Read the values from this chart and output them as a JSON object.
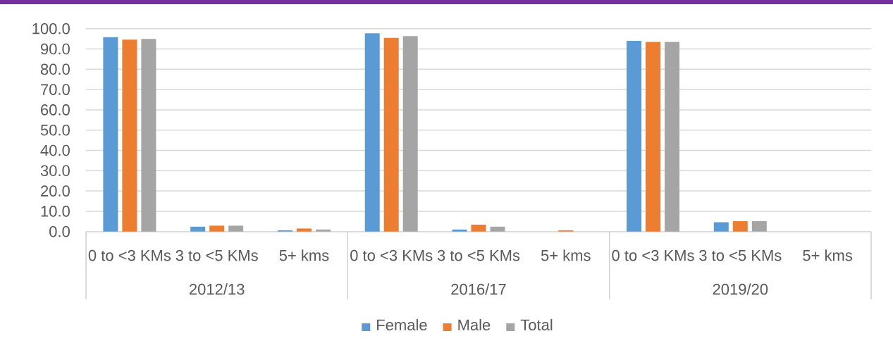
{
  "chart_data": {
    "type": "bar",
    "categories": [
      "0 to <3 KMs",
      "3 to <5 KMs",
      "5+ kms",
      "0 to <3 KMs",
      "3 to <5 KMs",
      "5+ kms",
      "0 to <3 KMs",
      "3 to <5 KMs",
      "5+ kms"
    ],
    "series": [
      {
        "name": "Female",
        "color": "#5b9bd5",
        "values": [
          95.8,
          2.4,
          0.6,
          97.7,
          1.0,
          null,
          94.0,
          4.6,
          null
        ]
      },
      {
        "name": "Male",
        "color": "#ed7d31",
        "values": [
          94.6,
          2.9,
          1.5,
          95.5,
          3.4,
          0.6,
          93.5,
          5.1,
          null
        ]
      },
      {
        "name": "Total",
        "color": "#a5a5a5",
        "values": [
          94.9,
          2.9,
          1.0,
          96.3,
          2.4,
          null,
          93.5,
          5.1,
          null
        ]
      }
    ],
    "ylim": [
      0,
      100
    ],
    "yticks": [
      {
        "value": 0,
        "label": "0.0"
      },
      {
        "value": 10,
        "label": "10.0"
      },
      {
        "value": 20,
        "label": "20.0"
      },
      {
        "value": 30,
        "label": "30.0"
      },
      {
        "value": 40,
        "label": "40.0"
      },
      {
        "value": 50,
        "label": "50.0"
      },
      {
        "value": 60,
        "label": "60.0"
      },
      {
        "value": 70,
        "label": "70.0"
      },
      {
        "value": 80,
        "label": "80.0"
      },
      {
        "value": 90,
        "label": "90.0"
      },
      {
        "value": 100,
        "label": "100.0"
      }
    ],
    "grid": "y",
    "legend": "bottom",
    "annotations": [
      "2012/13",
      "2016/17",
      "2019/20"
    ]
  }
}
